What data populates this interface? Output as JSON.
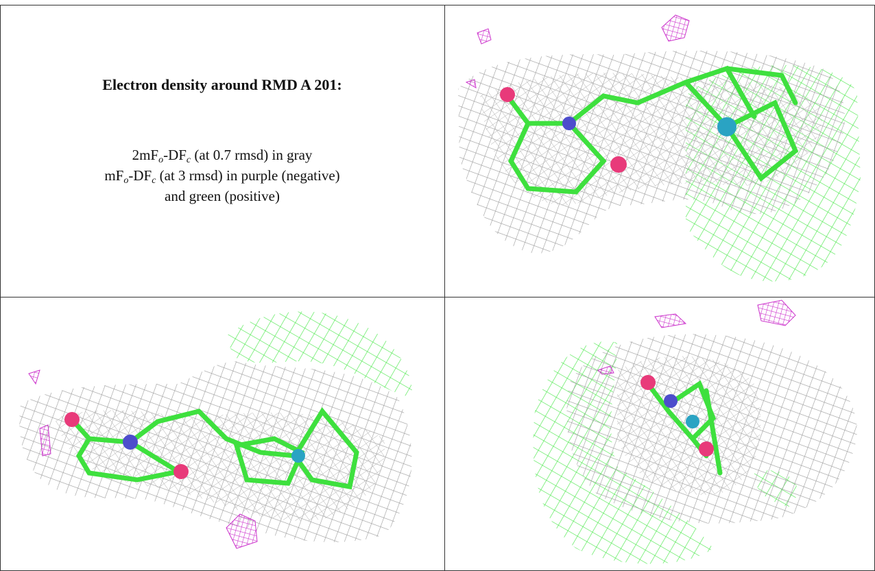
{
  "legend": {
    "title": "Electron density around RMD A 201:",
    "lines": [
      [
        "2mF",
        "o",
        "-DF",
        "c",
        " (at 0.7 rmsd) in gray"
      ],
      [
        "mF",
        "o",
        "-DF",
        "c",
        " (at 3 rmsd) in purple (negative)"
      ],
      [
        "and green (positive)"
      ]
    ]
  }
}
